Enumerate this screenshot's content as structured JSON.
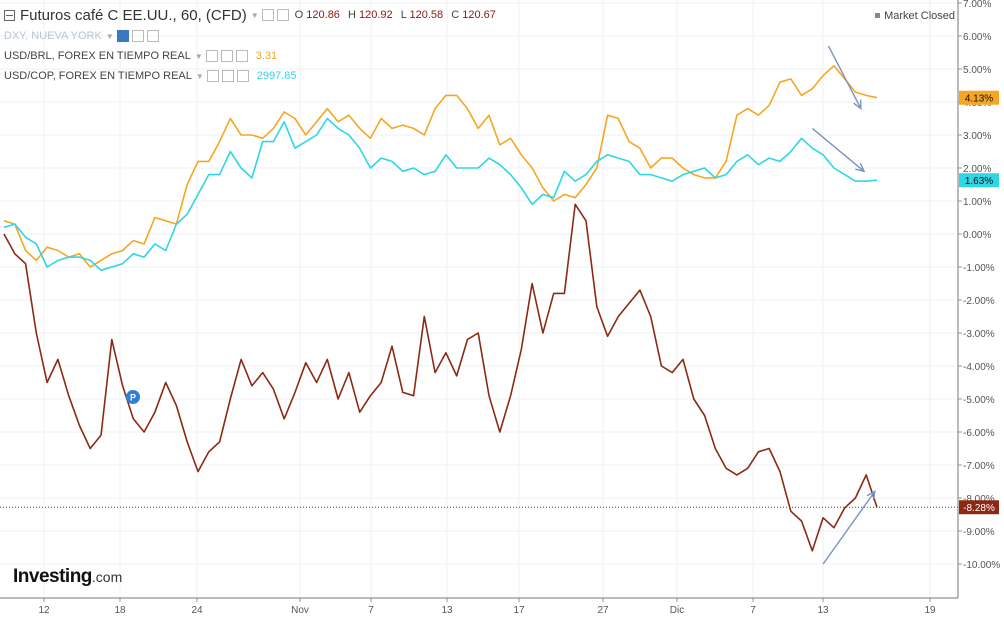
{
  "legend": {
    "main": {
      "title": "Futuros café C EE.UU., 60, (CFD)",
      "o_label": "O",
      "o": "120.86",
      "h_label": "H",
      "h": "120.92",
      "l_label": "L",
      "l": "120.58",
      "c_label": "C",
      "c": "120.67"
    },
    "dxy": {
      "label": "DXY, NUEVA YORK"
    },
    "brl": {
      "label": "USD/BRL, FOREX EN TIEMPO REAL",
      "value": "3.31",
      "color": "#f5a623"
    },
    "cop": {
      "label": "USD/COP, FOREX EN TIEMPO REAL",
      "value": "2997.85",
      "color": "#2ed6e6"
    }
  },
  "status": {
    "market": "Market Closed"
  },
  "branding": {
    "logo_main": "Investing",
    "logo_suffix": ".com"
  },
  "marker": {
    "label": "P"
  },
  "chart_data": {
    "type": "line",
    "x_ticks": [
      "12",
      "18",
      "24",
      "Nov",
      "7",
      "13",
      "17",
      "27",
      "Dic",
      "7",
      "13",
      "19"
    ],
    "y_ticks": [
      "7.00%",
      "6.00%",
      "5.00%",
      "4.00%",
      "3.00%",
      "2.00%",
      "1.00%",
      "0.00%",
      "-1.00%",
      "-2.00%",
      "-3.00%",
      "-4.00%",
      "-5.00%",
      "-6.00%",
      "-7.00%",
      "-8.00%",
      "-9.00%",
      "-10.00%"
    ],
    "ylim": [
      -10.8,
      7.1
    ],
    "grid": true,
    "series": [
      {
        "name": "Futuros café C EE.UU.",
        "color": "#8b2a14",
        "last_label": "-8.28%",
        "last": -8.28,
        "points": [
          [
            0,
            0
          ],
          [
            1,
            -0.6
          ],
          [
            2,
            -0.9
          ],
          [
            3,
            -3.0
          ],
          [
            4,
            -4.5
          ],
          [
            5,
            -3.8
          ],
          [
            6,
            -4.9
          ],
          [
            7,
            -5.8
          ],
          [
            8,
            -6.5
          ],
          [
            9,
            -6.1
          ],
          [
            10,
            -3.2
          ],
          [
            11,
            -4.6
          ],
          [
            12,
            -5.6
          ],
          [
            13,
            -6.0
          ],
          [
            14,
            -5.4
          ],
          [
            15,
            -4.5
          ],
          [
            16,
            -5.2
          ],
          [
            17,
            -6.3
          ],
          [
            18,
            -7.2
          ],
          [
            19,
            -6.6
          ],
          [
            20,
            -6.3
          ],
          [
            21,
            -5.0
          ],
          [
            22,
            -3.8
          ],
          [
            23,
            -4.6
          ],
          [
            24,
            -4.2
          ],
          [
            25,
            -4.7
          ],
          [
            26,
            -5.6
          ],
          [
            27,
            -4.8
          ],
          [
            28,
            -3.9
          ],
          [
            29,
            -4.5
          ],
          [
            30,
            -3.8
          ],
          [
            31,
            -5.0
          ],
          [
            32,
            -4.2
          ],
          [
            33,
            -5.4
          ],
          [
            34,
            -4.9
          ],
          [
            35,
            -4.5
          ],
          [
            36,
            -3.4
          ],
          [
            37,
            -4.8
          ],
          [
            38,
            -4.9
          ],
          [
            39,
            -2.5
          ],
          [
            40,
            -4.2
          ],
          [
            41,
            -3.6
          ],
          [
            42,
            -4.3
          ],
          [
            43,
            -3.2
          ],
          [
            44,
            -3.0
          ],
          [
            45,
            -4.9
          ],
          [
            46,
            -6.0
          ],
          [
            47,
            -4.9
          ],
          [
            48,
            -3.5
          ],
          [
            49,
            -1.5
          ],
          [
            50,
            -3.0
          ],
          [
            51,
            -1.8
          ],
          [
            52,
            -1.8
          ],
          [
            53,
            0.9
          ],
          [
            54,
            0.4
          ],
          [
            55,
            -2.2
          ],
          [
            56,
            -3.1
          ],
          [
            57,
            -2.5
          ],
          [
            58,
            -2.1
          ],
          [
            59,
            -1.7
          ],
          [
            60,
            -2.5
          ],
          [
            61,
            -4.0
          ],
          [
            62,
            -4.2
          ],
          [
            63,
            -3.8
          ],
          [
            64,
            -5.0
          ],
          [
            65,
            -5.5
          ],
          [
            66,
            -6.5
          ],
          [
            67,
            -7.1
          ],
          [
            68,
            -7.3
          ],
          [
            69,
            -7.1
          ],
          [
            70,
            -6.6
          ],
          [
            71,
            -6.5
          ],
          [
            72,
            -7.2
          ],
          [
            73,
            -8.4
          ],
          [
            74,
            -8.7
          ],
          [
            75,
            -9.6
          ],
          [
            76,
            -8.6
          ],
          [
            77,
            -8.9
          ],
          [
            78,
            -8.3
          ],
          [
            79,
            -8.0
          ],
          [
            80,
            -7.3
          ],
          [
            81,
            -8.28
          ]
        ]
      },
      {
        "name": "USD/BRL",
        "color": "#f5a623",
        "last_label": "4.13%",
        "last": 4.13,
        "points": [
          [
            0,
            0.4
          ],
          [
            1,
            0.3
          ],
          [
            2,
            -0.5
          ],
          [
            3,
            -0.8
          ],
          [
            4,
            -0.4
          ],
          [
            5,
            -0.5
          ],
          [
            6,
            -0.7
          ],
          [
            7,
            -0.6
          ],
          [
            8,
            -1.0
          ],
          [
            9,
            -0.8
          ],
          [
            10,
            -0.6
          ],
          [
            11,
            -0.5
          ],
          [
            12,
            -0.2
          ],
          [
            13,
            -0.3
          ],
          [
            14,
            0.5
          ],
          [
            15,
            0.4
          ],
          [
            16,
            0.3
          ],
          [
            17,
            1.5
          ],
          [
            18,
            2.2
          ],
          [
            19,
            2.2
          ],
          [
            20,
            2.8
          ],
          [
            21,
            3.5
          ],
          [
            22,
            3.0
          ],
          [
            23,
            3.0
          ],
          [
            24,
            2.9
          ],
          [
            25,
            3.2
          ],
          [
            26,
            3.7
          ],
          [
            27,
            3.5
          ],
          [
            28,
            3.0
          ],
          [
            29,
            3.4
          ],
          [
            30,
            3.8
          ],
          [
            31,
            3.4
          ],
          [
            32,
            3.6
          ],
          [
            33,
            3.2
          ],
          [
            34,
            2.9
          ],
          [
            35,
            3.5
          ],
          [
            36,
            3.2
          ],
          [
            37,
            3.3
          ],
          [
            38,
            3.2
          ],
          [
            39,
            3.0
          ],
          [
            40,
            3.8
          ],
          [
            41,
            4.2
          ],
          [
            42,
            4.2
          ],
          [
            43,
            3.8
          ],
          [
            44,
            3.2
          ],
          [
            45,
            3.6
          ],
          [
            46,
            2.7
          ],
          [
            47,
            2.9
          ],
          [
            48,
            2.4
          ],
          [
            49,
            2.0
          ],
          [
            50,
            1.4
          ],
          [
            51,
            1.0
          ],
          [
            52,
            1.2
          ],
          [
            53,
            1.1
          ],
          [
            54,
            1.5
          ],
          [
            55,
            2.0
          ],
          [
            56,
            3.6
          ],
          [
            57,
            3.5
          ],
          [
            58,
            2.8
          ],
          [
            59,
            2.6
          ],
          [
            60,
            2.0
          ],
          [
            61,
            2.3
          ],
          [
            62,
            2.3
          ],
          [
            63,
            2.0
          ],
          [
            64,
            1.8
          ],
          [
            65,
            1.7
          ],
          [
            66,
            1.7
          ],
          [
            67,
            2.2
          ],
          [
            68,
            3.6
          ],
          [
            69,
            3.8
          ],
          [
            70,
            3.6
          ],
          [
            71,
            3.9
          ],
          [
            72,
            4.6
          ],
          [
            73,
            4.7
          ],
          [
            74,
            4.2
          ],
          [
            75,
            4.4
          ],
          [
            76,
            4.8
          ],
          [
            77,
            5.1
          ],
          [
            78,
            4.7
          ],
          [
            79,
            4.3
          ],
          [
            80,
            4.2
          ],
          [
            81,
            4.13
          ]
        ]
      },
      {
        "name": "USD/COP",
        "color": "#2ed6e6",
        "last_label": "1.63%",
        "last": 1.63,
        "points": [
          [
            0,
            0.2
          ],
          [
            1,
            0.3
          ],
          [
            2,
            -0.1
          ],
          [
            3,
            -0.3
          ],
          [
            4,
            -1.0
          ],
          [
            5,
            -0.8
          ],
          [
            6,
            -0.7
          ],
          [
            7,
            -0.7
          ],
          [
            8,
            -0.8
          ],
          [
            9,
            -1.1
          ],
          [
            10,
            -1.0
          ],
          [
            11,
            -0.9
          ],
          [
            12,
            -0.6
          ],
          [
            13,
            -0.7
          ],
          [
            14,
            -0.3
          ],
          [
            15,
            -0.5
          ],
          [
            16,
            0.3
          ],
          [
            17,
            0.6
          ],
          [
            18,
            1.2
          ],
          [
            19,
            1.8
          ],
          [
            20,
            1.8
          ],
          [
            21,
            2.5
          ],
          [
            22,
            2.0
          ],
          [
            23,
            1.7
          ],
          [
            24,
            2.8
          ],
          [
            25,
            2.8
          ],
          [
            26,
            3.4
          ],
          [
            27,
            2.6
          ],
          [
            28,
            2.8
          ],
          [
            29,
            3.0
          ],
          [
            30,
            3.5
          ],
          [
            31,
            3.2
          ],
          [
            32,
            3.0
          ],
          [
            33,
            2.6
          ],
          [
            34,
            2.0
          ],
          [
            35,
            2.3
          ],
          [
            36,
            2.2
          ],
          [
            37,
            1.9
          ],
          [
            38,
            2.0
          ],
          [
            39,
            1.8
          ],
          [
            40,
            1.9
          ],
          [
            41,
            2.4
          ],
          [
            42,
            2.0
          ],
          [
            43,
            2.0
          ],
          [
            44,
            2.0
          ],
          [
            45,
            2.3
          ],
          [
            46,
            2.1
          ],
          [
            47,
            1.8
          ],
          [
            48,
            1.4
          ],
          [
            49,
            0.9
          ],
          [
            50,
            1.2
          ],
          [
            51,
            1.1
          ],
          [
            52,
            1.9
          ],
          [
            53,
            1.6
          ],
          [
            54,
            1.8
          ],
          [
            55,
            2.2
          ],
          [
            56,
            2.4
          ],
          [
            57,
            2.3
          ],
          [
            58,
            2.2
          ],
          [
            59,
            1.8
          ],
          [
            60,
            1.8
          ],
          [
            61,
            1.7
          ],
          [
            62,
            1.6
          ],
          [
            63,
            1.8
          ],
          [
            64,
            1.9
          ],
          [
            65,
            2.0
          ],
          [
            66,
            1.7
          ],
          [
            67,
            1.8
          ],
          [
            68,
            2.2
          ],
          [
            69,
            2.4
          ],
          [
            70,
            2.1
          ],
          [
            71,
            2.3
          ],
          [
            72,
            2.2
          ],
          [
            73,
            2.5
          ],
          [
            74,
            2.9
          ],
          [
            75,
            2.6
          ],
          [
            76,
            2.4
          ],
          [
            77,
            2.0
          ],
          [
            78,
            1.8
          ],
          [
            79,
            1.6
          ],
          [
            80,
            1.6
          ],
          [
            81,
            1.63
          ]
        ]
      }
    ],
    "annotations": [
      {
        "type": "arrow",
        "color": "#7a92c4",
        "from": [
          76.5,
          5.7
        ],
        "to": [
          79.5,
          3.8
        ]
      },
      {
        "type": "arrow",
        "color": "#7a92c4",
        "from": [
          75,
          3.2
        ],
        "to": [
          79.8,
          1.9
        ]
      },
      {
        "type": "arrow",
        "color": "#7a92c4",
        "from": [
          76,
          -10.0
        ],
        "to": [
          80.8,
          -7.8
        ]
      }
    ],
    "reference_line": {
      "value": -8.28,
      "color": "#8b2a14",
      "style": "dotted"
    }
  }
}
